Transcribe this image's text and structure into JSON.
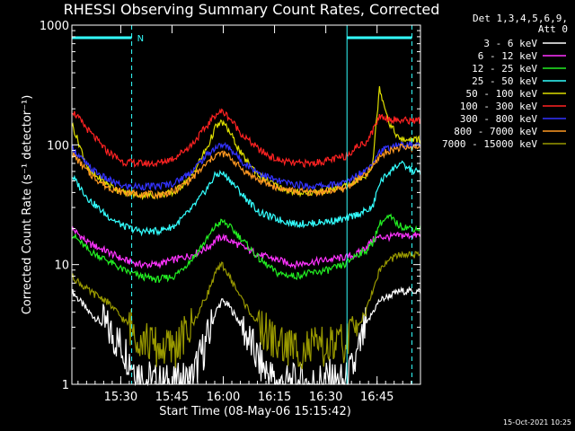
{
  "chart_data": {
    "type": "line",
    "title": "RHESSI Observing Summary Count Rates, Corrected",
    "ylabel": "Corrected Count Rate (s⁻¹ detector⁻¹)",
    "xlabel": "Start Time (08-May-06 15:15:42)",
    "y_scale": "log",
    "ylim": [
      1,
      1000
    ],
    "xlim_minutes": [
      0,
      102
    ],
    "y_ticks": [
      {
        "value": 1,
        "label": "1"
      },
      {
        "value": 10,
        "label": "10"
      },
      {
        "value": 100,
        "label": "100"
      },
      {
        "value": 1000,
        "label": "1000"
      }
    ],
    "x_ticks": [
      {
        "value": 14.3,
        "label": "15:30"
      },
      {
        "value": 29.3,
        "label": "15:45"
      },
      {
        "value": 44.3,
        "label": "16:00"
      },
      {
        "value": 59.3,
        "label": "16:15"
      },
      {
        "value": 74.3,
        "label": "16:30"
      },
      {
        "value": 89.3,
        "label": "16:45"
      }
    ],
    "legend_header": [
      "Det 1,3,4,5,6,9,",
      "Att 0"
    ],
    "annotations": {
      "night_label": "N",
      "night_bars": [
        [
          0,
          17.5
        ],
        [
          80.5,
          99.5
        ]
      ],
      "solid_markers": [
        0,
        80.5
      ],
      "dashed_markers": [
        17.5,
        99.5
      ]
    },
    "timestamp": "15-Oct-2021 10:25",
    "x": [
      0,
      5,
      10,
      15,
      20,
      25,
      30,
      35,
      40,
      42,
      44,
      46,
      50,
      55,
      60,
      65,
      70,
      75,
      80,
      83,
      86,
      88,
      90,
      93,
      96,
      100
    ],
    "series": [
      {
        "name": "3 - 6 keV",
        "color": "#ffffff",
        "values": [
          6,
          4,
          3,
          2,
          1.2,
          1,
          1,
          1.1,
          2.5,
          4,
          5,
          4.5,
          3,
          1.5,
          1,
          1,
          1,
          1.1,
          1,
          1.5,
          3,
          4,
          5,
          5.5,
          6,
          6
        ]
      },
      {
        "name": "6 - 12 keV",
        "color": "#ff33ff",
        "values": [
          20,
          15,
          13,
          11,
          10,
          10,
          11,
          12,
          14,
          16,
          17,
          16,
          14,
          12,
          11,
          10,
          10.5,
          11,
          11.5,
          12,
          14,
          16,
          17,
          17,
          17.5,
          17.5
        ]
      },
      {
        "name": "12 - 25 keV",
        "color": "#22ee22",
        "values": [
          18,
          13,
          11,
          9,
          8,
          7.5,
          8,
          11,
          17,
          21,
          23,
          21,
          16,
          11,
          8.5,
          8,
          8.5,
          9,
          10,
          12,
          13,
          15,
          22,
          25,
          21,
          20
        ]
      },
      {
        "name": "25 - 50 keV",
        "color": "#33ffff",
        "values": [
          55,
          35,
          26,
          21,
          19,
          19,
          21,
          29,
          45,
          56,
          58,
          52,
          38,
          27,
          24,
          22,
          22,
          23,
          24,
          26,
          28,
          30,
          48,
          60,
          70,
          60
        ]
      },
      {
        "name": "50 - 100 keV",
        "color": "#dddd00",
        "values": [
          150,
          60,
          48,
          40,
          38,
          38,
          40,
          55,
          100,
          140,
          155,
          130,
          80,
          55,
          45,
          40,
          40,
          42,
          45,
          50,
          55,
          70,
          300,
          150,
          110,
          110
        ]
      },
      {
        "name": "100 - 300 keV",
        "color": "#ff2222",
        "values": [
          195,
          130,
          90,
          72,
          70,
          70,
          78,
          100,
          150,
          180,
          190,
          170,
          120,
          90,
          75,
          70,
          70,
          74,
          80,
          95,
          105,
          130,
          175,
          165,
          160,
          160
        ]
      },
      {
        "name": "300 - 800 keV",
        "color": "#3333ff",
        "values": [
          95,
          65,
          52,
          45,
          45,
          45,
          48,
          60,
          85,
          95,
          100,
          95,
          72,
          58,
          50,
          47,
          45,
          46,
          48,
          55,
          62,
          72,
          88,
          95,
          100,
          100
        ]
      },
      {
        "name": "800 - 7000 keV",
        "color": "#ff9922",
        "values": [
          85,
          58,
          45,
          40,
          39,
          38,
          41,
          52,
          72,
          82,
          85,
          80,
          62,
          50,
          44,
          41,
          40,
          41,
          43,
          50,
          56,
          65,
          80,
          90,
          95,
          95
        ]
      },
      {
        "name": "7000 - 15000 keV",
        "color": "#999900",
        "values": [
          8,
          6,
          5,
          3.5,
          2.5,
          2,
          2,
          3,
          6,
          8.5,
          10,
          8,
          5,
          3,
          2.2,
          2,
          2,
          2,
          2.2,
          3,
          4,
          6,
          9,
          11,
          12,
          12
        ]
      }
    ]
  }
}
